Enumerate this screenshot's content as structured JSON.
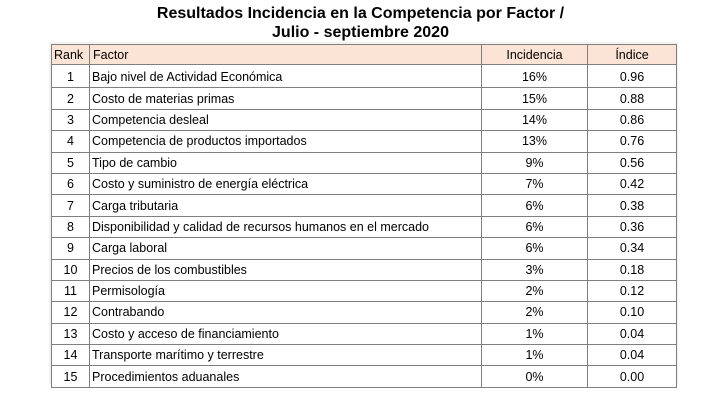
{
  "title": {
    "line1": "Resultados Incidencia en la Competencia por Factor /",
    "line2": "Julio - septiembre 2020"
  },
  "table": {
    "headers": [
      "Rank",
      "Factor",
      "Incidencia",
      "Índice"
    ],
    "rows": [
      [
        "1",
        "Bajo nivel de Actividad Económica",
        "16%",
        "0.96"
      ],
      [
        "2",
        "Costo de materias primas",
        "15%",
        "0.88"
      ],
      [
        "3",
        "Competencia desleal",
        "14%",
        "0.86"
      ],
      [
        "4",
        "Competencia de productos importados",
        "13%",
        "0.76"
      ],
      [
        "5",
        "Tipo de cambio",
        "9%",
        "0.56"
      ],
      [
        "6",
        "Costo y suministro de energía eléctrica",
        "7%",
        "0.42"
      ],
      [
        "7",
        "Carga tributaria",
        "6%",
        "0.38"
      ],
      [
        "8",
        "Disponibilidad y calidad de recursos humanos en el mercado",
        "6%",
        "0.36"
      ],
      [
        "9",
        "Carga laboral",
        "6%",
        "0.34"
      ],
      [
        "10",
        "Precios de los combustibles",
        "3%",
        "0.18"
      ],
      [
        "11",
        "Permisología",
        "2%",
        "0.12"
      ],
      [
        "12",
        "Contrabando",
        "2%",
        "0.10"
      ],
      [
        "13",
        "Costo y acceso de financiamiento",
        "1%",
        "0.04"
      ],
      [
        "14",
        "Transporte marítimo y terrestre",
        "1%",
        "0.04"
      ],
      [
        "15",
        "Procedimientos aduanales",
        "0%",
        "0.00"
      ]
    ]
  },
  "colors": {
    "header_fill": "#fbe4d5",
    "border": "#7f7f7f"
  }
}
